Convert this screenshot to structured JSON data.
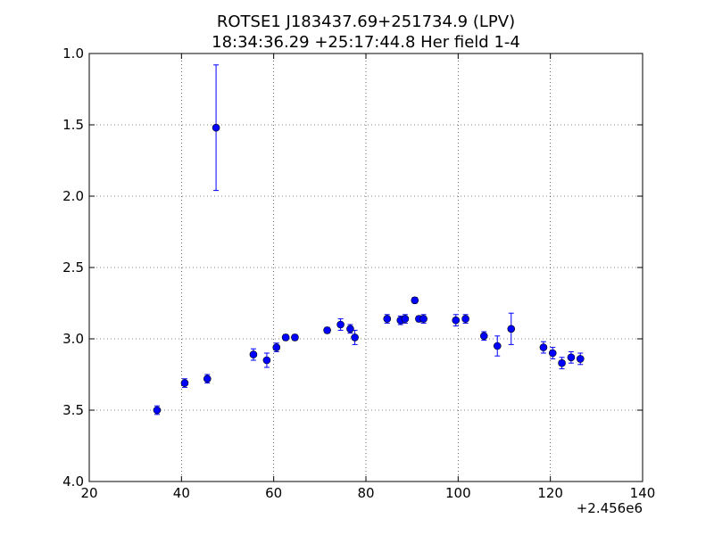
{
  "chart_data": {
    "type": "scatter",
    "title_line1": "ROTSE1 J183437.69+251734.9 (LPV)",
    "title_line2": "18:34:36.29 +25:17:44.8 Her field 1-4",
    "xlabel": "",
    "ylabel": "",
    "x_offset_label": "+2.456e6",
    "xlim": [
      20,
      140
    ],
    "ylim": [
      1.0,
      4.0
    ],
    "y_inverted": true,
    "grid": true,
    "x_ticks": [
      20,
      40,
      60,
      80,
      100,
      120,
      140
    ],
    "x_tick_labels": [
      "20",
      "40",
      "60",
      "80",
      "100",
      "120",
      "140"
    ],
    "y_ticks": [
      1.0,
      1.5,
      2.0,
      2.5,
      3.0,
      3.5,
      4.0
    ],
    "y_tick_labels": [
      "1.0",
      "1.5",
      "2.0",
      "2.5",
      "3.0",
      "3.5",
      "4.0"
    ],
    "marker_color": "#0000ff",
    "errorbar_color": "#0000ff",
    "points": [
      {
        "x": 2456034.7,
        "y": 3.5,
        "err": 0.03
      },
      {
        "x": 2456040.7,
        "y": 3.31,
        "err": 0.03
      },
      {
        "x": 2456045.6,
        "y": 3.28,
        "err": 0.03
      },
      {
        "x": 2456047.5,
        "y": 1.52,
        "err": 0.44
      },
      {
        "x": 2456055.6,
        "y": 3.11,
        "err": 0.04
      },
      {
        "x": 2456058.5,
        "y": 3.15,
        "err": 0.05
      },
      {
        "x": 2456060.6,
        "y": 3.06,
        "err": 0.03
      },
      {
        "x": 2456062.6,
        "y": 2.99,
        "err": 0.02
      },
      {
        "x": 2456064.6,
        "y": 2.99,
        "err": 0.02
      },
      {
        "x": 2456071.6,
        "y": 2.94,
        "err": 0.02
      },
      {
        "x": 2456074.5,
        "y": 2.9,
        "err": 0.04
      },
      {
        "x": 2456076.6,
        "y": 2.93,
        "err": 0.03
      },
      {
        "x": 2456077.6,
        "y": 2.99,
        "err": 0.05
      },
      {
        "x": 2456084.6,
        "y": 2.86,
        "err": 0.03
      },
      {
        "x": 2456087.5,
        "y": 2.87,
        "err": 0.03
      },
      {
        "x": 2456088.5,
        "y": 2.86,
        "err": 0.03
      },
      {
        "x": 2456090.6,
        "y": 2.73,
        "err": 0.02
      },
      {
        "x": 2456091.5,
        "y": 2.86,
        "err": 0.02
      },
      {
        "x": 2456092.5,
        "y": 2.86,
        "err": 0.03
      },
      {
        "x": 2456099.5,
        "y": 2.87,
        "err": 0.04
      },
      {
        "x": 2456101.6,
        "y": 2.86,
        "err": 0.03
      },
      {
        "x": 2456105.6,
        "y": 2.98,
        "err": 0.03
      },
      {
        "x": 2456108.5,
        "y": 3.05,
        "err": 0.07
      },
      {
        "x": 2456111.5,
        "y": 2.93,
        "err": 0.11
      },
      {
        "x": 2456118.5,
        "y": 3.06,
        "err": 0.04
      },
      {
        "x": 2456120.5,
        "y": 3.1,
        "err": 0.04
      },
      {
        "x": 2456122.5,
        "y": 3.17,
        "err": 0.04
      },
      {
        "x": 2456124.5,
        "y": 3.13,
        "err": 0.04
      },
      {
        "x": 2456126.5,
        "y": 3.14,
        "err": 0.04
      }
    ]
  }
}
